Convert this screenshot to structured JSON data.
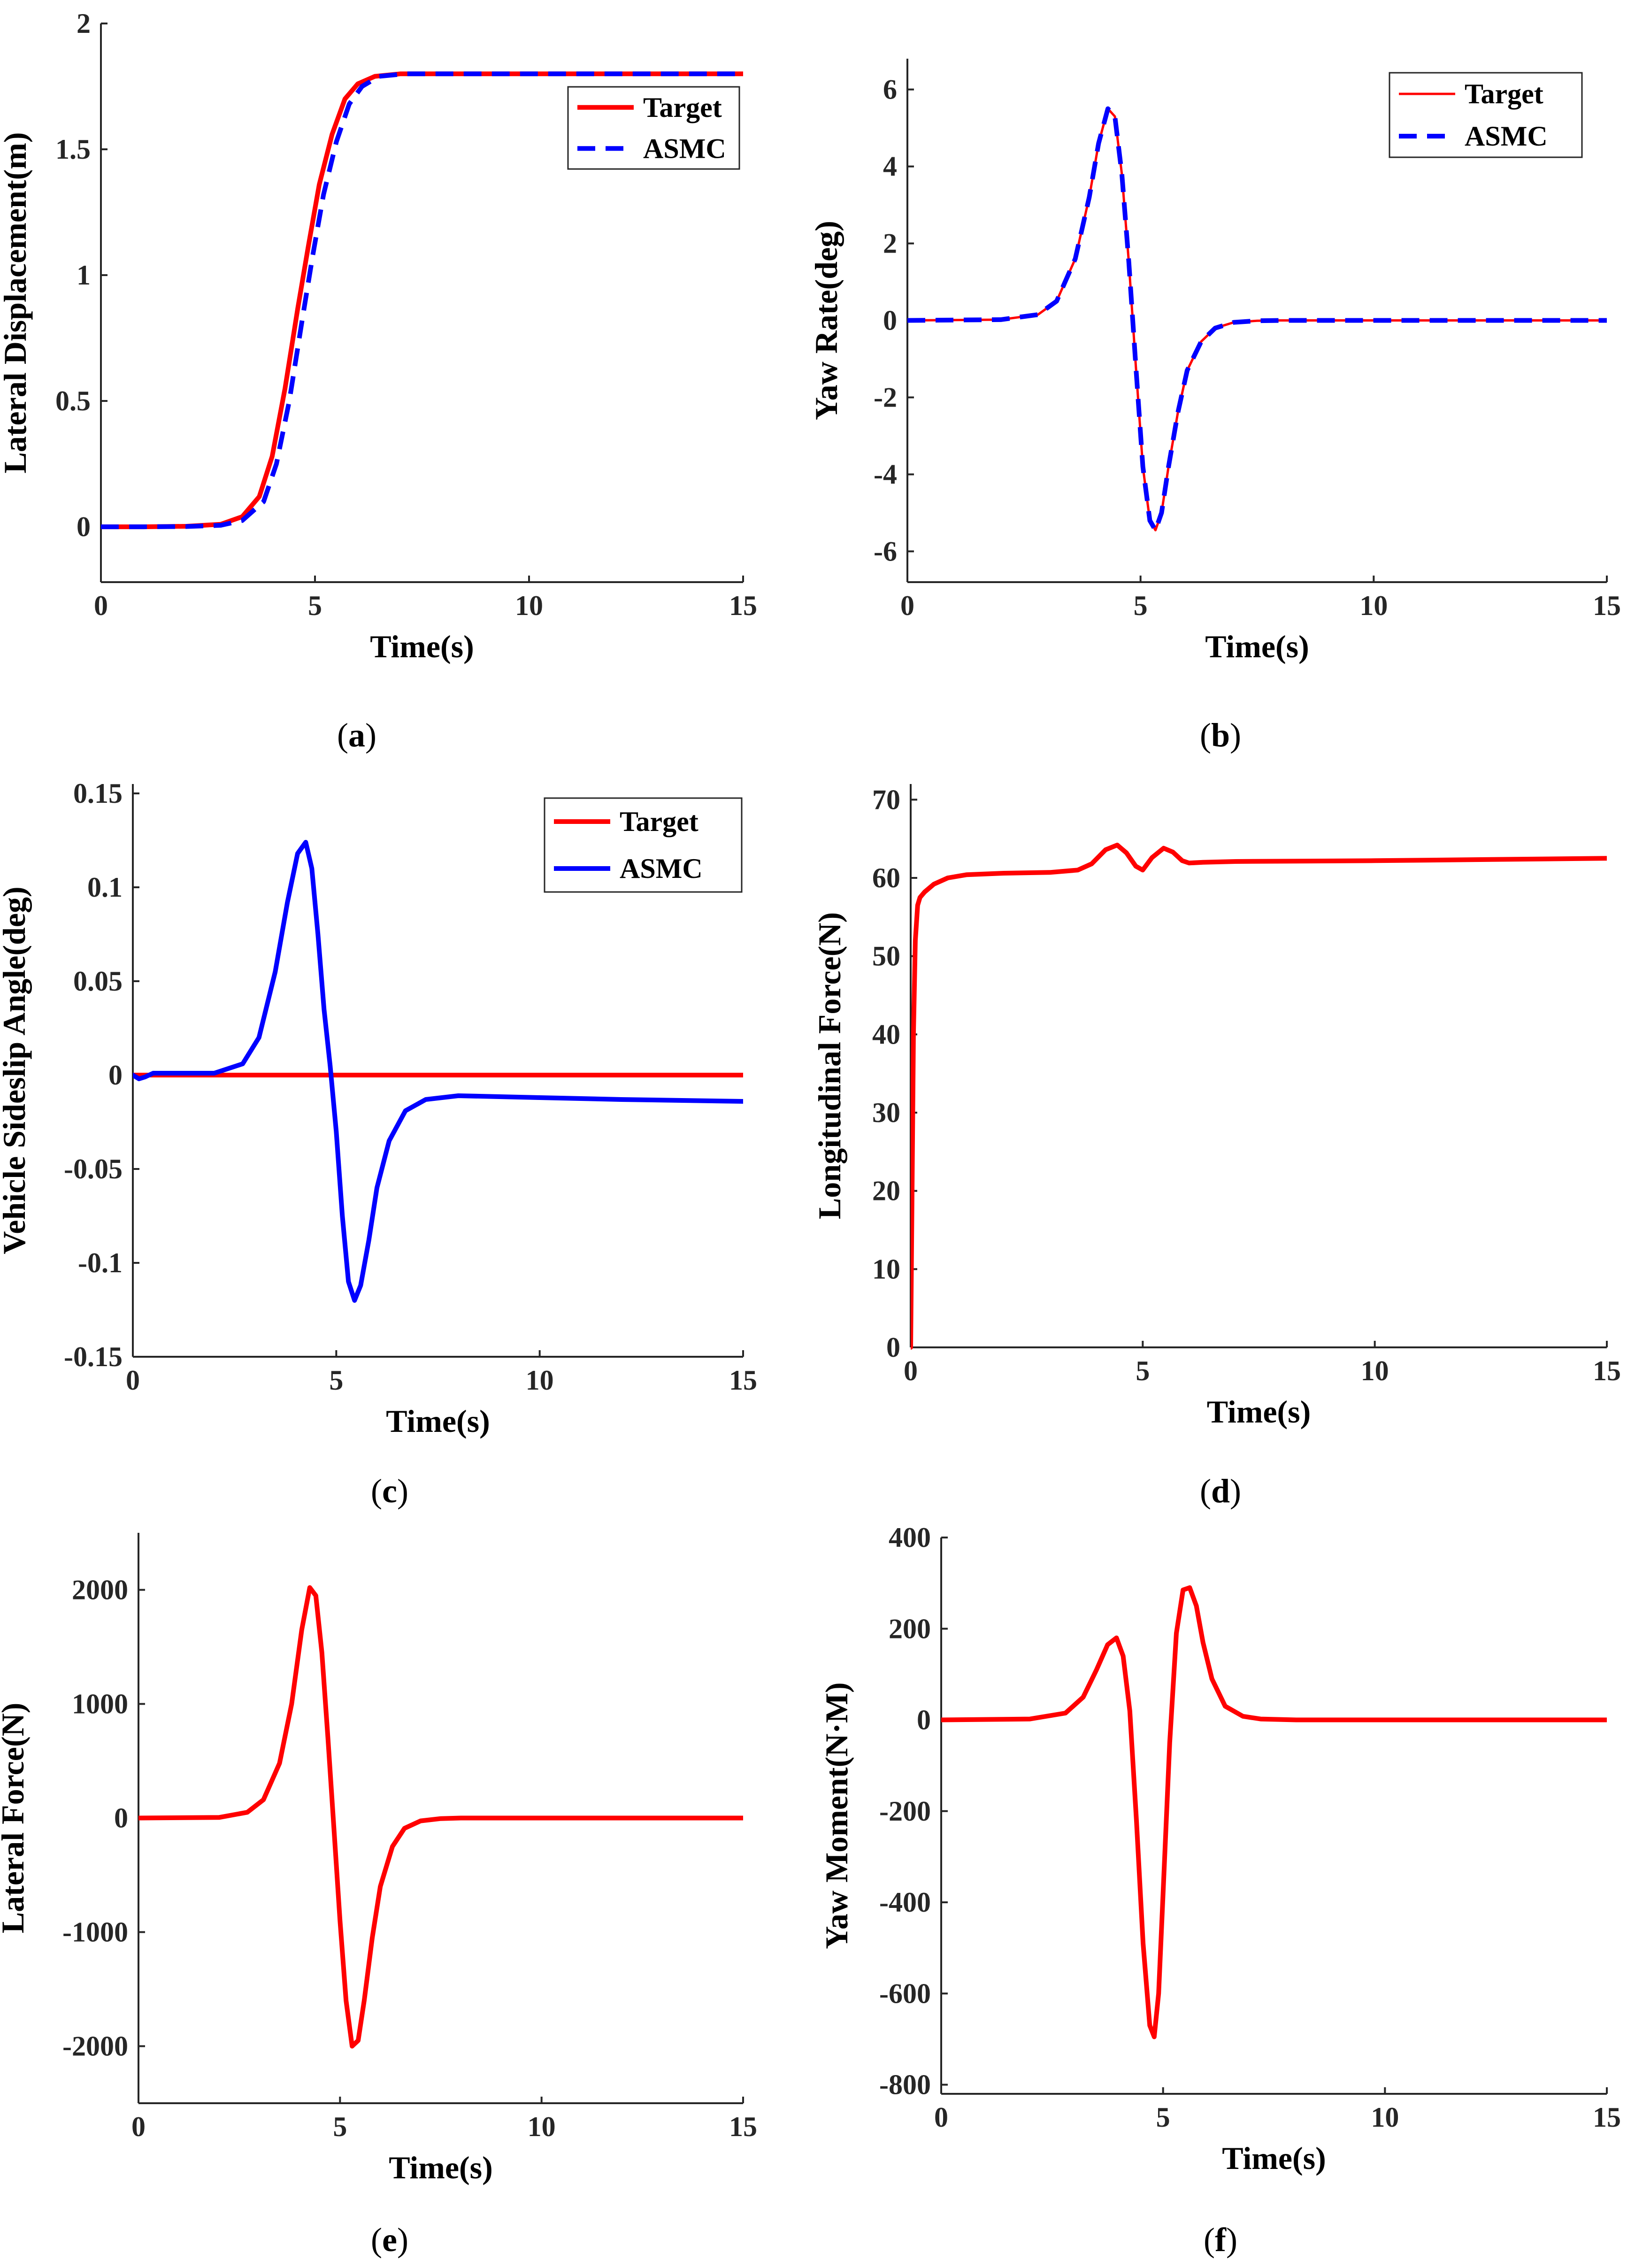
{
  "chart_data": [
    {
      "id": "a",
      "type": "line",
      "caption": {
        "open": "(",
        "letter": "a",
        "close": ")"
      },
      "xlabel": "Time(s)",
      "ylabel": "Lateral Displacement(m)",
      "xlim": [
        0,
        15
      ],
      "ylim": [
        -0.22,
        2.0
      ],
      "xticks": [
        0,
        5,
        10,
        15
      ],
      "yticks": [
        0,
        0.5,
        1,
        1.5,
        2
      ],
      "ytick_labels": [
        "0",
        "0.5",
        "1",
        "1.5",
        "2"
      ],
      "legend": {
        "position": "top-right"
      },
      "series": [
        {
          "name": "Target",
          "color": "#ff0000",
          "style": "solid",
          "width": "thick",
          "x": [
            0,
            1,
            2,
            2.8,
            3.3,
            3.7,
            4.0,
            4.3,
            4.6,
            4.85,
            5.1,
            5.4,
            5.7,
            6.0,
            6.4,
            7.0,
            8,
            10,
            12,
            15
          ],
          "y": [
            0,
            0,
            0.002,
            0.01,
            0.04,
            0.12,
            0.28,
            0.55,
            0.87,
            1.12,
            1.36,
            1.56,
            1.7,
            1.76,
            1.79,
            1.8,
            1.8,
            1.8,
            1.8,
            1.8
          ]
        },
        {
          "name": "ASMC",
          "color": "#0000ff",
          "style": "dashed",
          "width": "thick",
          "x": [
            0,
            1,
            2,
            2.8,
            3.3,
            3.8,
            4.1,
            4.4,
            4.7,
            4.95,
            5.2,
            5.5,
            5.8,
            6.1,
            6.5,
            7.1,
            8,
            10,
            12,
            15
          ],
          "y": [
            0,
            0,
            0.001,
            0.006,
            0.025,
            0.1,
            0.25,
            0.5,
            0.82,
            1.08,
            1.32,
            1.53,
            1.68,
            1.75,
            1.79,
            1.8,
            1.8,
            1.8,
            1.8,
            1.8
          ]
        }
      ]
    },
    {
      "id": "b",
      "type": "line",
      "caption": {
        "open": "(",
        "letter": "b",
        "close": ")"
      },
      "xlabel": "Time(s)",
      "ylabel": "Yaw Rate(deg)",
      "xlim": [
        0,
        15
      ],
      "ylim": [
        -6.8,
        6.8
      ],
      "xticks": [
        0,
        5,
        10,
        15
      ],
      "yticks": [
        -6,
        -4,
        -2,
        0,
        2,
        4,
        6
      ],
      "ytick_labels": [
        "-6",
        "-4",
        "-2",
        "0",
        "2",
        "4",
        "6"
      ],
      "legend": {
        "position": "top-right"
      },
      "series": [
        {
          "name": "Target",
          "color": "#ff0000",
          "style": "solid",
          "width": "thin",
          "x": [
            0,
            2,
            2.8,
            3.2,
            3.6,
            3.9,
            4.1,
            4.3,
            4.45,
            4.6,
            4.75,
            4.9,
            5.05,
            5.2,
            5.32,
            5.45,
            5.6,
            5.8,
            6.0,
            6.3,
            6.6,
            7.0,
            7.5,
            8,
            10,
            15
          ],
          "y": [
            0,
            0.02,
            0.15,
            0.5,
            1.6,
            3.2,
            4.6,
            5.5,
            5.3,
            3.8,
            1.5,
            -1.2,
            -3.8,
            -5.2,
            -5.45,
            -5.0,
            -3.8,
            -2.4,
            -1.3,
            -0.55,
            -0.2,
            -0.05,
            -0.01,
            0,
            0,
            0
          ]
        },
        {
          "name": "ASMC",
          "color": "#0000ff",
          "style": "dashed",
          "width": "thick",
          "x": [
            0,
            2,
            2.8,
            3.2,
            3.6,
            3.9,
            4.1,
            4.3,
            4.45,
            4.6,
            4.75,
            4.9,
            5.05,
            5.2,
            5.32,
            5.45,
            5.6,
            5.8,
            6.0,
            6.3,
            6.6,
            7.0,
            7.5,
            8,
            10,
            15
          ],
          "y": [
            0,
            0.02,
            0.15,
            0.5,
            1.6,
            3.2,
            4.6,
            5.5,
            5.3,
            3.8,
            1.5,
            -1.2,
            -3.8,
            -5.2,
            -5.45,
            -5.0,
            -3.8,
            -2.4,
            -1.3,
            -0.55,
            -0.2,
            -0.05,
            -0.01,
            0,
            0,
            0
          ]
        }
      ]
    },
    {
      "id": "c",
      "type": "line",
      "caption": {
        "open": "(",
        "letter": "c",
        "close": ")"
      },
      "xlabel": "Time(s)",
      "ylabel": "Vehicle Sideslip Angle(deg)",
      "xlim": [
        0,
        15
      ],
      "ylim": [
        -0.15,
        0.155
      ],
      "xticks": [
        0,
        5,
        10,
        15
      ],
      "yticks": [
        -0.15,
        -0.1,
        -0.05,
        0,
        0.05,
        0.1,
        0.15
      ],
      "ytick_labels": [
        "-0.15",
        "-0.1",
        "-0.05",
        "0",
        "0.05",
        "0.1",
        "0.15"
      ],
      "legend": {
        "position": "top-right"
      },
      "series": [
        {
          "name": "Target",
          "color": "#ff0000",
          "style": "solid",
          "width": "thick",
          "x": [
            0,
            15
          ],
          "y": [
            0,
            0
          ]
        },
        {
          "name": "ASMC",
          "color": "#0000ff",
          "style": "solid",
          "width": "thick",
          "x": [
            0,
            0.15,
            0.3,
            0.5,
            1,
            2,
            2.7,
            3.1,
            3.5,
            3.8,
            4.05,
            4.25,
            4.4,
            4.55,
            4.7,
            4.85,
            5.0,
            5.15,
            5.3,
            5.45,
            5.6,
            5.8,
            6.0,
            6.3,
            6.7,
            7.2,
            8,
            10,
            12,
            15
          ],
          "y": [
            0,
            -0.002,
            -0.001,
            0.001,
            0.001,
            0.001,
            0.006,
            0.02,
            0.055,
            0.092,
            0.118,
            0.124,
            0.11,
            0.075,
            0.035,
            0.005,
            -0.03,
            -0.075,
            -0.11,
            -0.12,
            -0.112,
            -0.088,
            -0.06,
            -0.035,
            -0.019,
            -0.013,
            -0.011,
            -0.012,
            -0.013,
            -0.014
          ]
        }
      ]
    },
    {
      "id": "d",
      "type": "line",
      "caption": {
        "open": "(",
        "letter": "d",
        "close": ")"
      },
      "xlabel": "Time(s)",
      "ylabel": "Longitudinal Force(N)",
      "xlim": [
        0,
        15
      ],
      "ylim": [
        0,
        72
      ],
      "xticks": [
        0,
        5,
        10,
        15
      ],
      "yticks": [
        0,
        10,
        20,
        30,
        40,
        50,
        60,
        70
      ],
      "ytick_labels": [
        "0",
        "10",
        "20",
        "30",
        "40",
        "50",
        "60",
        "70"
      ],
      "series": [
        {
          "name": "Longitudinal Force",
          "color": "#ff0000",
          "style": "solid",
          "width": "thick",
          "x": [
            0,
            0.03,
            0.06,
            0.1,
            0.15,
            0.2,
            0.3,
            0.5,
            0.8,
            1.2,
            2,
            3,
            3.6,
            3.9,
            4.2,
            4.45,
            4.65,
            4.85,
            5.0,
            5.2,
            5.45,
            5.65,
            5.85,
            6.0,
            6.3,
            7,
            10,
            15
          ],
          "y": [
            0,
            20,
            40,
            52,
            56.5,
            57.5,
            58.2,
            59.2,
            60,
            60.4,
            60.6,
            60.7,
            61,
            61.8,
            63.6,
            64.2,
            63.2,
            61.5,
            61,
            62.6,
            63.8,
            63.3,
            62.2,
            61.9,
            62,
            62.1,
            62.2,
            62.5
          ]
        }
      ]
    },
    {
      "id": "e",
      "type": "line",
      "caption": {
        "open": "(",
        "letter": "e",
        "close": ")"
      },
      "xlabel": "Time(s)",
      "ylabel": "Lateral Force(N)",
      "xlim": [
        0,
        15
      ],
      "ylim": [
        -2500,
        2500
      ],
      "xticks": [
        0,
        5,
        10,
        15
      ],
      "yticks": [
        -2000,
        -1000,
        0,
        1000,
        2000
      ],
      "ytick_labels": [
        "-2000",
        "-1000",
        "0",
        "1000",
        "2000"
      ],
      "series": [
        {
          "name": "Lateral Force",
          "color": "#ff0000",
          "style": "solid",
          "width": "thick",
          "x": [
            0,
            2,
            2.7,
            3.1,
            3.5,
            3.8,
            4.05,
            4.25,
            4.4,
            4.55,
            4.7,
            4.85,
            5.0,
            5.15,
            5.3,
            5.45,
            5.6,
            5.8,
            6.0,
            6.3,
            6.6,
            7.0,
            7.5,
            8,
            10,
            15
          ],
          "y": [
            0,
            5,
            50,
            160,
            480,
            1000,
            1650,
            2020,
            1950,
            1450,
            700,
            -100,
            -900,
            -1600,
            -2000,
            -1950,
            -1600,
            -1050,
            -600,
            -250,
            -90,
            -25,
            -5,
            0,
            0,
            0
          ]
        }
      ]
    },
    {
      "id": "f",
      "type": "line",
      "caption": {
        "open": "(",
        "letter": "f",
        "close": ")"
      },
      "xlabel": "Time(s)",
      "ylabel": "Yaw Moment(N·M)",
      "xlim": [
        0,
        15
      ],
      "ylim": [
        -820,
        400
      ],
      "xticks": [
        0,
        5,
        10,
        15
      ],
      "yticks": [
        -800,
        -600,
        -400,
        -200,
        0,
        200,
        400
      ],
      "ytick_labels": [
        "-800",
        "-600",
        "-400",
        "-200",
        "0",
        "200",
        "400"
      ],
      "series": [
        {
          "name": "Yaw Moment",
          "color": "#ff0000",
          "style": "solid",
          "width": "thick",
          "x": [
            0,
            2,
            2.8,
            3.2,
            3.5,
            3.75,
            3.95,
            4.1,
            4.25,
            4.4,
            4.55,
            4.7,
            4.8,
            4.9,
            5.0,
            5.15,
            5.3,
            5.45,
            5.6,
            5.75,
            5.9,
            6.1,
            6.4,
            6.8,
            7.2,
            8,
            10,
            15
          ],
          "y": [
            0,
            2,
            15,
            50,
            110,
            165,
            180,
            140,
            20,
            -220,
            -490,
            -670,
            -695,
            -600,
            -380,
            -50,
            190,
            285,
            290,
            250,
            170,
            90,
            30,
            8,
            2,
            0,
            0,
            0
          ]
        }
      ]
    }
  ]
}
